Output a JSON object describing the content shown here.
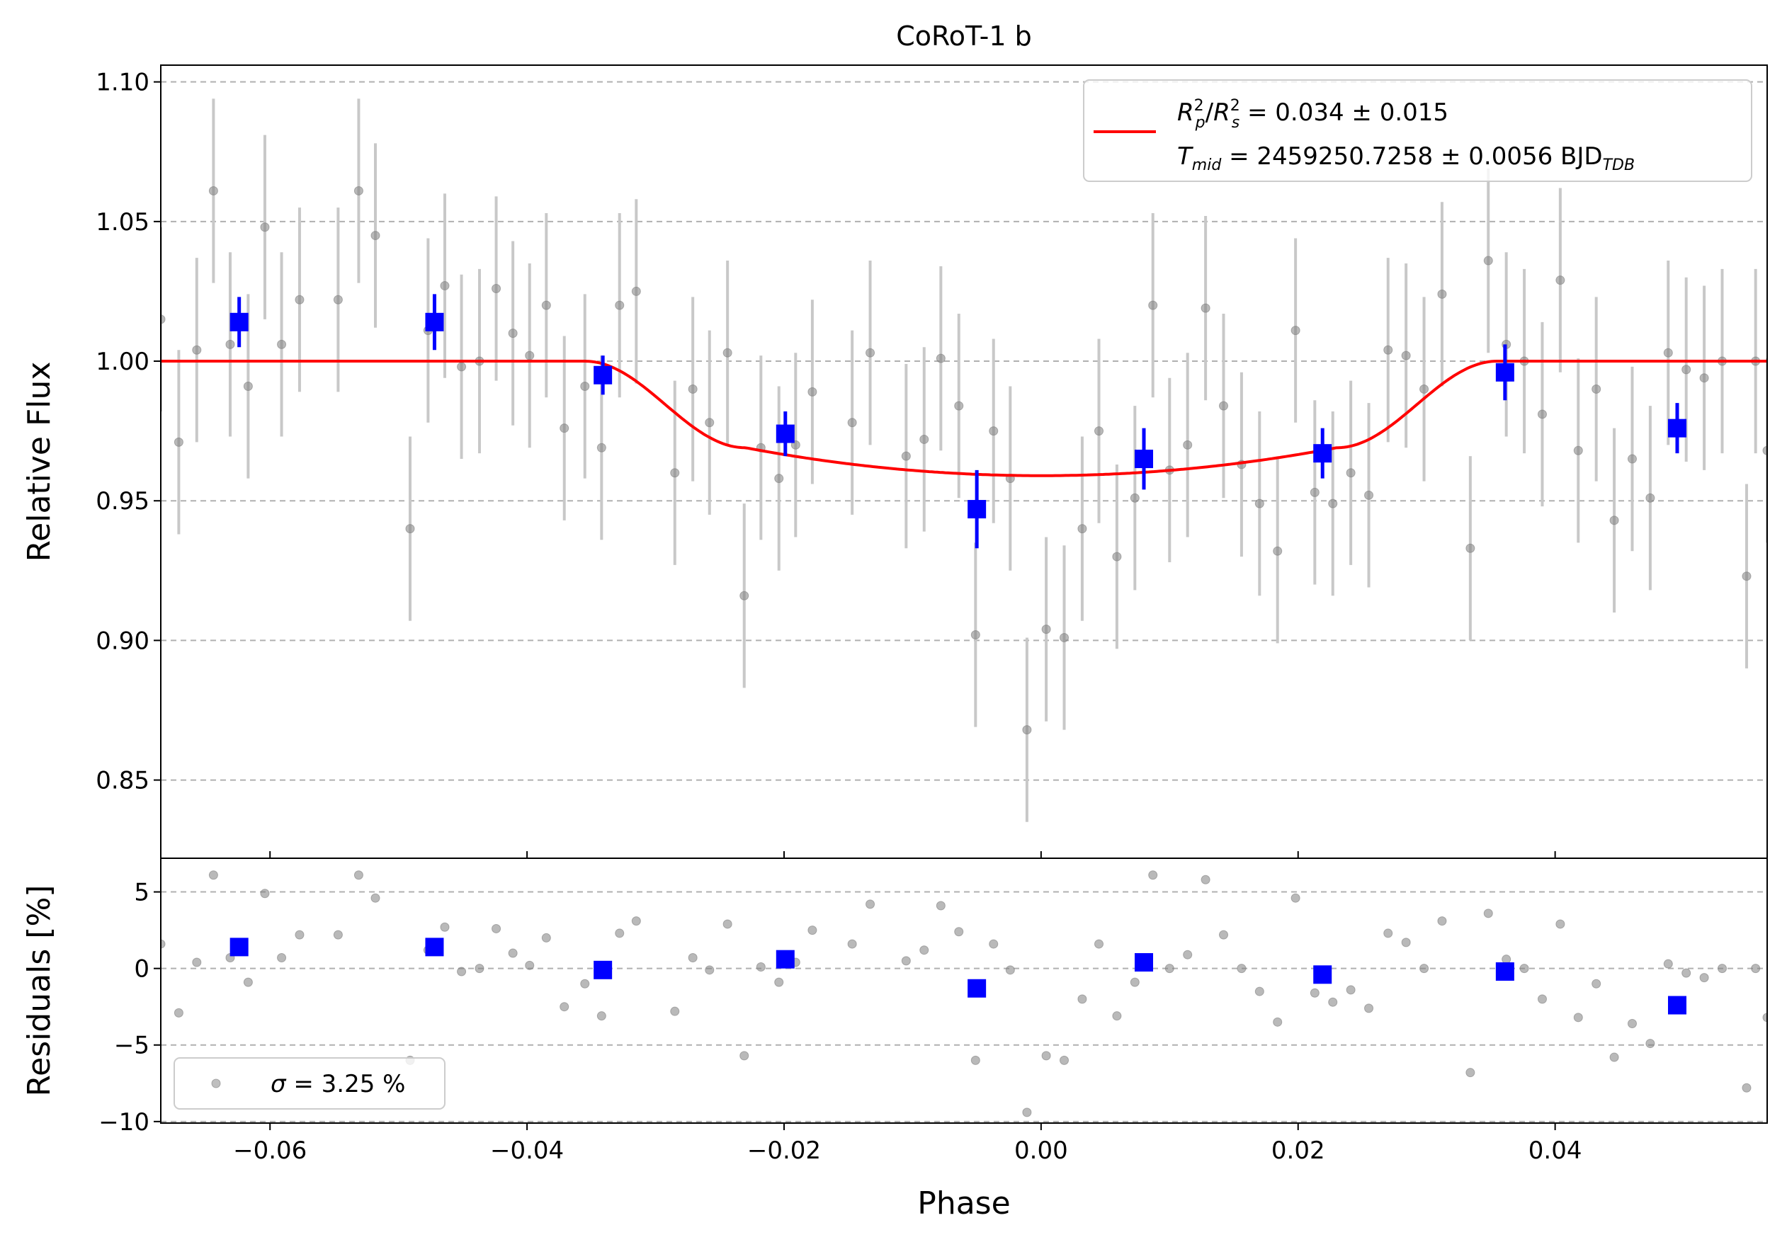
{
  "chart_data": [
    {
      "type": "scatter",
      "panel": "main",
      "title": "CoRoT-1 b",
      "xlabel": "",
      "ylabel": "Relative Flux",
      "xlim": [
        -0.0685,
        0.0565
      ],
      "ylim": [
        0.822,
        1.106
      ],
      "yticks": [
        0.85,
        0.9,
        0.95,
        1.0,
        1.05,
        1.1
      ],
      "ytick_labels": [
        "0.85",
        "0.90",
        "0.95",
        "1.00",
        "1.05",
        "1.10"
      ],
      "grid": "horizontal dashed",
      "legend_position": "top-right",
      "colors": {
        "raw": "#808080",
        "raw_err": "#c8c8c8",
        "binned": "#0000ff",
        "model": "#ff0000"
      },
      "legend": {
        "line1": {
          "lhs_base": "R",
          "lhs_sup": "2",
          "lhs_sub": "p",
          "sep": "/",
          "rhs_base": "R",
          "rhs_sup": "2",
          "rhs_sub": "s",
          "value": " = 0.034 ± 0.015"
        },
        "line2": {
          "base": "T",
          "sub": "mid",
          "value": " = 2459250.7258 ± 0.0056 BJD",
          "unit_sub": "TDB"
        }
      },
      "model": {
        "t_mid": 0.0,
        "t14_half": 0.0355,
        "t23_half": 0.023,
        "depth_edge": 0.031,
        "depth_center": 0.041
      },
      "raw_points": [
        [
          -0.0685,
          1.015,
          0.033
        ],
        [
          -0.0671,
          0.971,
          0.033
        ],
        [
          -0.0657,
          1.004,
          0.033
        ],
        [
          -0.0644,
          1.061,
          0.033
        ],
        [
          -0.0631,
          1.006,
          0.033
        ],
        [
          -0.0617,
          0.991,
          0.033
        ],
        [
          -0.0604,
          1.048,
          0.033
        ],
        [
          -0.0591,
          1.006,
          0.033
        ],
        [
          -0.0577,
          1.022,
          0.033
        ],
        [
          -0.0547,
          1.022,
          0.033
        ],
        [
          -0.0531,
          1.061,
          0.033
        ],
        [
          -0.0518,
          1.045,
          0.033
        ],
        [
          -0.0491,
          0.94,
          0.033
        ],
        [
          -0.0477,
          1.011,
          0.033
        ],
        [
          -0.0464,
          1.027,
          0.033
        ],
        [
          -0.0451,
          0.998,
          0.033
        ],
        [
          -0.0437,
          1.0,
          0.033
        ],
        [
          -0.0424,
          1.026,
          0.033
        ],
        [
          -0.0411,
          1.01,
          0.033
        ],
        [
          -0.0398,
          1.002,
          0.033
        ],
        [
          -0.0385,
          1.02,
          0.033
        ],
        [
          -0.0371,
          0.976,
          0.033
        ],
        [
          -0.0355,
          0.991,
          0.033
        ],
        [
          -0.0342,
          0.969,
          0.033
        ],
        [
          -0.0328,
          1.02,
          0.033
        ],
        [
          -0.0315,
          1.025,
          0.033
        ],
        [
          -0.0285,
          0.96,
          0.033
        ],
        [
          -0.0271,
          0.99,
          0.033
        ],
        [
          -0.0258,
          0.978,
          0.033
        ],
        [
          -0.0244,
          1.003,
          0.033
        ],
        [
          -0.0231,
          0.916,
          0.033
        ],
        [
          -0.0218,
          0.969,
          0.033
        ],
        [
          -0.0204,
          0.958,
          0.033
        ],
        [
          -0.0191,
          0.97,
          0.033
        ],
        [
          -0.0178,
          0.989,
          0.033
        ],
        [
          -0.0147,
          0.978,
          0.033
        ],
        [
          -0.0133,
          1.003,
          0.033
        ],
        [
          -0.0105,
          0.966,
          0.033
        ],
        [
          -0.0091,
          0.972,
          0.033
        ],
        [
          -0.0078,
          1.001,
          0.033
        ],
        [
          -0.0064,
          0.984,
          0.033
        ],
        [
          -0.0051,
          0.902,
          0.033
        ],
        [
          -0.0037,
          0.975,
          0.033
        ],
        [
          -0.0024,
          0.958,
          0.033
        ],
        [
          -0.0011,
          0.868,
          0.033
        ],
        [
          0.0004,
          0.904,
          0.033
        ],
        [
          0.0018,
          0.901,
          0.033
        ],
        [
          0.0032,
          0.94,
          0.033
        ],
        [
          0.0045,
          0.975,
          0.033
        ],
        [
          0.0059,
          0.93,
          0.033
        ],
        [
          0.0073,
          0.951,
          0.033
        ],
        [
          0.0087,
          1.02,
          0.033
        ],
        [
          0.01,
          0.961,
          0.033
        ],
        [
          0.0114,
          0.97,
          0.033
        ],
        [
          0.0128,
          1.019,
          0.033
        ],
        [
          0.0142,
          0.984,
          0.033
        ],
        [
          0.0156,
          0.963,
          0.033
        ],
        [
          0.017,
          0.949,
          0.033
        ],
        [
          0.0184,
          0.932,
          0.033
        ],
        [
          0.0198,
          1.011,
          0.033
        ],
        [
          0.0213,
          0.953,
          0.033
        ],
        [
          0.0227,
          0.949,
          0.033
        ],
        [
          0.0241,
          0.96,
          0.033
        ],
        [
          0.0255,
          0.952,
          0.033
        ],
        [
          0.027,
          1.004,
          0.033
        ],
        [
          0.0284,
          1.002,
          0.033
        ],
        [
          0.0298,
          0.99,
          0.033
        ],
        [
          0.0312,
          1.024,
          0.033
        ],
        [
          0.0334,
          0.933,
          0.033
        ],
        [
          0.0348,
          1.036,
          0.033
        ],
        [
          0.0362,
          1.006,
          0.033
        ],
        [
          0.0376,
          1.0,
          0.033
        ],
        [
          0.039,
          0.981,
          0.033
        ],
        [
          0.0404,
          1.029,
          0.033
        ],
        [
          0.0418,
          0.968,
          0.033
        ],
        [
          0.0432,
          0.99,
          0.033
        ],
        [
          0.0446,
          0.943,
          0.033
        ],
        [
          0.046,
          0.965,
          0.033
        ],
        [
          0.0474,
          0.951,
          0.033
        ],
        [
          0.0488,
          1.003,
          0.033
        ],
        [
          0.0502,
          0.997,
          0.033
        ],
        [
          0.0516,
          0.994,
          0.033
        ],
        [
          0.053,
          1.0,
          0.033
        ],
        [
          0.0549,
          0.923,
          0.033
        ],
        [
          0.0556,
          1.0,
          0.033
        ],
        [
          0.0565,
          0.968,
          0.033
        ]
      ],
      "binned_points": [
        [
          -0.0624,
          1.014,
          0.009
        ],
        [
          -0.0472,
          1.014,
          0.01
        ],
        [
          -0.0341,
          0.995,
          0.007
        ],
        [
          -0.0199,
          0.974,
          0.008
        ],
        [
          -0.005,
          0.947,
          0.014
        ],
        [
          0.008,
          0.965,
          0.011
        ],
        [
          0.0219,
          0.967,
          0.009
        ],
        [
          0.0361,
          0.996,
          0.01
        ],
        [
          0.0495,
          0.976,
          0.009
        ]
      ]
    },
    {
      "type": "scatter",
      "panel": "residuals",
      "title": "",
      "xlabel": "Phase",
      "ylabel": "Residuals [%]",
      "xlim": [
        -0.0685,
        0.0565
      ],
      "ylim": [
        -10.1,
        7.2
      ],
      "xticks": [
        -0.06,
        -0.04,
        -0.02,
        0.0,
        0.02,
        0.04
      ],
      "xtick_labels": [
        "−0.06",
        "−0.04",
        "−0.02",
        "0.00",
        "0.02",
        "0.04"
      ],
      "yticks": [
        -10,
        -5,
        0,
        5
      ],
      "ytick_labels": [
        "−10",
        "−5",
        "0",
        "5"
      ],
      "grid": "horizontal dashed",
      "legend_position": "bottom-left",
      "legend": {
        "symbol": "σ",
        "value": " = 3.25 %"
      },
      "raw_points": [
        [
          -0.0685,
          1.6
        ],
        [
          -0.0671,
          -2.9
        ],
        [
          -0.0657,
          0.4
        ],
        [
          -0.0644,
          6.1
        ],
        [
          -0.0631,
          0.7
        ],
        [
          -0.0617,
          -0.9
        ],
        [
          -0.0604,
          4.9
        ],
        [
          -0.0591,
          0.7
        ],
        [
          -0.0577,
          2.2
        ],
        [
          -0.0547,
          2.2
        ],
        [
          -0.0531,
          6.1
        ],
        [
          -0.0518,
          4.6
        ],
        [
          -0.0491,
          -6.0
        ],
        [
          -0.0477,
          1.2
        ],
        [
          -0.0464,
          2.7
        ],
        [
          -0.0451,
          -0.2
        ],
        [
          -0.0437,
          0.0
        ],
        [
          -0.0424,
          2.6
        ],
        [
          -0.0411,
          1.0
        ],
        [
          -0.0398,
          0.2
        ],
        [
          -0.0385,
          2.0
        ],
        [
          -0.0371,
          -2.5
        ],
        [
          -0.0355,
          -1.0
        ],
        [
          -0.0342,
          -3.1
        ],
        [
          -0.0328,
          2.3
        ],
        [
          -0.0315,
          3.1
        ],
        [
          -0.0285,
          -2.8
        ],
        [
          -0.0271,
          0.7
        ],
        [
          -0.0258,
          -0.1
        ],
        [
          -0.0244,
          2.9
        ],
        [
          -0.0231,
          -5.7
        ],
        [
          -0.0218,
          0.1
        ],
        [
          -0.0204,
          -0.9
        ],
        [
          -0.0191,
          0.4
        ],
        [
          -0.0178,
          2.5
        ],
        [
          -0.0147,
          1.6
        ],
        [
          -0.0133,
          4.2
        ],
        [
          -0.0105,
          0.5
        ],
        [
          -0.0091,
          1.2
        ],
        [
          -0.0078,
          4.1
        ],
        [
          -0.0064,
          2.4
        ],
        [
          -0.0051,
          -6.0
        ],
        [
          -0.0037,
          1.6
        ],
        [
          -0.0024,
          -0.1
        ],
        [
          -0.0011,
          -9.4
        ],
        [
          0.0004,
          -5.7
        ],
        [
          0.0018,
          -6.0
        ],
        [
          0.0032,
          -2.0
        ],
        [
          0.0045,
          1.6
        ],
        [
          0.0059,
          -3.1
        ],
        [
          0.0073,
          -0.9
        ],
        [
          0.0087,
          6.1
        ],
        [
          0.01,
          0.0
        ],
        [
          0.0114,
          0.9
        ],
        [
          0.0128,
          5.8
        ],
        [
          0.0142,
          2.2
        ],
        [
          0.0156,
          0.0
        ],
        [
          0.017,
          -1.5
        ],
        [
          0.0184,
          -3.5
        ],
        [
          0.0198,
          4.6
        ],
        [
          0.0213,
          -1.6
        ],
        [
          0.0227,
          -2.2
        ],
        [
          0.0241,
          -1.4
        ],
        [
          0.0255,
          -2.6
        ],
        [
          0.027,
          2.3
        ],
        [
          0.0284,
          1.7
        ],
        [
          0.0298,
          0.0
        ],
        [
          0.0312,
          3.1
        ],
        [
          0.0334,
          -6.8
        ],
        [
          0.0348,
          3.6
        ],
        [
          0.0362,
          0.6
        ],
        [
          0.0376,
          0.0
        ],
        [
          0.039,
          -2.0
        ],
        [
          0.0404,
          2.9
        ],
        [
          0.0418,
          -3.2
        ],
        [
          0.0432,
          -1.0
        ],
        [
          0.0446,
          -5.8
        ],
        [
          0.046,
          -3.6
        ],
        [
          0.0474,
          -4.9
        ],
        [
          0.0488,
          0.3
        ],
        [
          0.0502,
          -0.3
        ],
        [
          0.0516,
          -0.6
        ],
        [
          0.053,
          0.0
        ],
        [
          0.0549,
          -7.8
        ],
        [
          0.0556,
          0.0
        ],
        [
          0.0565,
          -3.2
        ]
      ],
      "binned_points": [
        [
          -0.0624,
          1.4
        ],
        [
          -0.0472,
          1.4
        ],
        [
          -0.0341,
          -0.1
        ],
        [
          -0.0199,
          0.6
        ],
        [
          -0.005,
          -1.3
        ],
        [
          0.008,
          0.4
        ],
        [
          0.0219,
          -0.4
        ],
        [
          0.0361,
          -0.2
        ],
        [
          0.0495,
          -2.4
        ]
      ]
    }
  ]
}
